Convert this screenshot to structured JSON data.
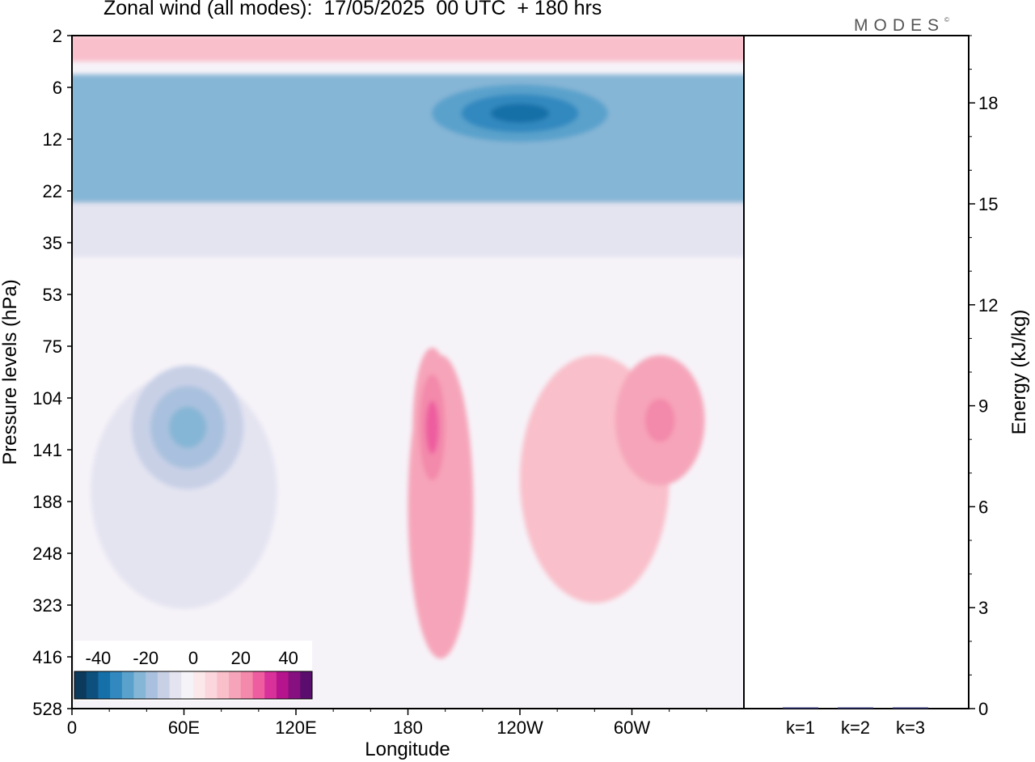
{
  "header": {
    "title": "Zonal wind (all modes):  17/05/2025  00 UTC  + 180 hrs",
    "logo": "MODES",
    "logo_mark": "©"
  },
  "chart_data": [
    {
      "type": "heatmap",
      "title": "Zonal wind (all modes):  17/05/2025  00 UTC  + 180 hrs",
      "xlabel": "Longitude",
      "ylabel": "Pressure levels (hPa)",
      "x_ticks": [
        "0",
        "60E",
        "120E",
        "180",
        "120W",
        "60W"
      ],
      "x_tick_degrees": [
        0,
        60,
        120,
        180,
        240,
        300
      ],
      "xlim": [
        0,
        360
      ],
      "y_ticks": [
        "2",
        "6",
        "12",
        "22",
        "35",
        "53",
        "75",
        "104",
        "141",
        "188",
        "248",
        "323",
        "416",
        "528"
      ],
      "y_scale": "reversed pressure levels (top = 2 hPa)",
      "colorbar": {
        "labels": [
          "-40",
          "-20",
          "0",
          "20",
          "40"
        ],
        "placement": "bottom-left, inside plot",
        "colors": [
          "#0b3a5c",
          "#0d4f7d",
          "#156fa8",
          "#3189bf",
          "#5aa2cc",
          "#86b6d6",
          "#a9c1de",
          "#c8d0e6",
          "#e4e4f1",
          "#f6f3f8",
          "#fbe8ea",
          "#fbd6dc",
          "#f9bfca",
          "#f6a4b9",
          "#f389ab",
          "#ee5d9f",
          "#d9319a",
          "#b5148c",
          "#86107f",
          "#5a0d6c"
        ]
      },
      "features": [
        {
          "lon_range": [
            0,
            360
          ],
          "pressure_range": [
            2,
            4
          ],
          "value_approx": 10
        },
        {
          "lon_range": [
            0,
            360
          ],
          "pressure_range": [
            5,
            25
          ],
          "value_approx": -25,
          "min_approx": -40,
          "min_location": [
            240,
            9
          ]
        },
        {
          "lon_range": [
            0,
            360
          ],
          "pressure_range": [
            25,
            40
          ],
          "value_approx": -10
        },
        {
          "lon_range": [
            10,
            110
          ],
          "pressure_range": [
            90,
            330
          ],
          "value_approx": -10,
          "min_approx": -25,
          "min_location": [
            62,
            125
          ]
        },
        {
          "lon_range": [
            180,
            215
          ],
          "pressure_range": [
            80,
            420
          ],
          "value_approx": 15,
          "max_approx": 25,
          "max_location": [
            193,
            125
          ]
        },
        {
          "lon_range": [
            240,
            320
          ],
          "pressure_range": [
            80,
            320
          ],
          "value_approx": 12,
          "max_approx": 22,
          "max_location": [
            315,
            120
          ]
        }
      ]
    },
    {
      "type": "bar",
      "ylabel": "Energy (kJ/kg)",
      "categories": [
        "k=1",
        "k=2",
        "k=3"
      ],
      "values": [
        0.02,
        0.01,
        0.01
      ],
      "ylim": [
        0,
        20
      ],
      "y_ticks": [
        "0",
        "3",
        "6",
        "9",
        "12",
        "15",
        "18"
      ]
    }
  ]
}
